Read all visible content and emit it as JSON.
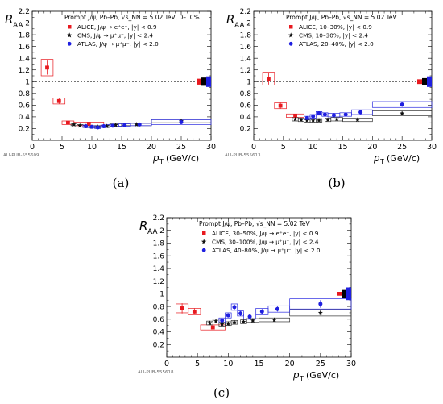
{
  "colors": {
    "alice": "#e8191f",
    "cms": "#111111",
    "atlas": "#1f1fe0",
    "alice_box": "#e8191f",
    "cms_box": "#333333",
    "atlas_box": "#2a2ae0",
    "unc_alice": "#e8191f",
    "unc_cms": "#000000",
    "unc_atlas": "#1f1fe0"
  },
  "chart_data": [
    {
      "id": "a",
      "caption": "(a)",
      "type": "scatter",
      "ylabel_main": "R",
      "ylabel_sub": "AA",
      "xlabel_main": "p",
      "xlabel_sub": "T",
      "xlabel_unit": "(GeV/c)",
      "header": "Prompt J/ψ, Pb–Pb, √s_NN = 5.02 TeV, 0–10%",
      "preliminary": "ALI-PUB-555609",
      "xlim": [
        0,
        30
      ],
      "ylim": [
        0,
        2.2
      ],
      "xticks": [
        0,
        5,
        10,
        15,
        20,
        25,
        30
      ],
      "yticks": [
        0.2,
        0.4,
        0.6,
        0.8,
        1,
        1.2,
        1.4,
        1.6,
        1.8,
        2,
        2.2
      ],
      "reference_line": 1,
      "legend": [
        {
          "label": "ALICE, J/ψ → e⁺e⁻, |y| < 0.9",
          "marker": "square",
          "color": "alice"
        },
        {
          "label": "CMS, J/ψ → μ⁺μ⁻, |y| < 2.4",
          "marker": "star",
          "color": "cms"
        },
        {
          "label": "ATLAS, J/ψ → μ⁺μ⁻, |y| < 2.0",
          "marker": "circle",
          "color": "atlas"
        }
      ],
      "series": [
        {
          "name": "ALICE",
          "color": "alice",
          "marker": "square",
          "points": [
            {
              "x": 2.5,
              "y": 1.24,
              "xlo": 1.5,
              "xhi": 3.5,
              "stat": 0.12,
              "sys": 0.14
            },
            {
              "x": 4.5,
              "y": 0.67,
              "xlo": 3.5,
              "xhi": 5.5,
              "stat": 0.05,
              "sys": 0.05
            },
            {
              "x": 6.0,
              "y": 0.3,
              "xlo": 5.0,
              "xhi": 7.0,
              "stat": 0.02,
              "sys": 0.03
            },
            {
              "x": 9.5,
              "y": 0.28,
              "xlo": 7.0,
              "xhi": 12.0,
              "stat": 0.02,
              "sys": 0.03
            }
          ]
        },
        {
          "name": "CMS",
          "color": "cms",
          "marker": "star",
          "points": [
            {
              "x": 7.0,
              "y": 0.27,
              "xlo": 6.5,
              "xhi": 7.5,
              "stat": 0.02,
              "sys": 0.02
            },
            {
              "x": 8.0,
              "y": 0.25,
              "xlo": 7.5,
              "xhi": 8.5,
              "stat": 0.02,
              "sys": 0.02
            },
            {
              "x": 9.0,
              "y": 0.24,
              "xlo": 8.5,
              "xhi": 9.5,
              "stat": 0.02,
              "sys": 0.02
            },
            {
              "x": 10.0,
              "y": 0.23,
              "xlo": 9.5,
              "xhi": 10.5,
              "stat": 0.02,
              "sys": 0.02
            },
            {
              "x": 11.0,
              "y": 0.23,
              "xlo": 10.5,
              "xhi": 11.5,
              "stat": 0.02,
              "sys": 0.02
            },
            {
              "x": 12.5,
              "y": 0.24,
              "xlo": 12.0,
              "xhi": 13.0,
              "stat": 0.02,
              "sys": 0.02
            },
            {
              "x": 14.0,
              "y": 0.26,
              "xlo": 13.0,
              "xhi": 15.0,
              "stat": 0.02,
              "sys": 0.02
            },
            {
              "x": 17.5,
              "y": 0.27,
              "xlo": 15.0,
              "xhi": 20.0,
              "stat": 0.02,
              "sys": 0.02
            },
            {
              "x": 25.0,
              "y": 0.33,
              "xlo": 20.0,
              "xhi": 30.0,
              "stat": 0.03,
              "sys": 0.03
            }
          ]
        },
        {
          "name": "ATLAS",
          "color": "atlas",
          "marker": "circle",
          "points": [
            {
              "x": 9.0,
              "y": 0.24,
              "xlo": 8.5,
              "xhi": 9.5,
              "stat": 0.02,
              "sys": 0.02
            },
            {
              "x": 10.0,
              "y": 0.23,
              "xlo": 9.5,
              "xhi": 10.5,
              "stat": 0.02,
              "sys": 0.02
            },
            {
              "x": 11.0,
              "y": 0.22,
              "xlo": 10.5,
              "xhi": 11.5,
              "stat": 0.02,
              "sys": 0.02
            },
            {
              "x": 12.0,
              "y": 0.24,
              "xlo": 11.5,
              "xhi": 12.5,
              "stat": 0.02,
              "sys": 0.02
            },
            {
              "x": 13.5,
              "y": 0.25,
              "xlo": 12.5,
              "xhi": 14.5,
              "stat": 0.02,
              "sys": 0.02
            },
            {
              "x": 15.5,
              "y": 0.26,
              "xlo": 14.5,
              "xhi": 16.5,
              "stat": 0.02,
              "sys": 0.02
            },
            {
              "x": 18.0,
              "y": 0.27,
              "xlo": 16.5,
              "xhi": 20.0,
              "stat": 0.02,
              "sys": 0.02
            },
            {
              "x": 25.0,
              "y": 0.31,
              "xlo": 20.0,
              "xhi": 30.0,
              "stat": 0.03,
              "sys": 0.04
            }
          ]
        }
      ],
      "global_unc": [
        {
          "color": "unc_alice",
          "value": 0.05
        },
        {
          "color": "unc_cms",
          "value": 0.07
        },
        {
          "color": "unc_atlas",
          "value": 0.09
        }
      ]
    },
    {
      "id": "b",
      "caption": "(b)",
      "type": "scatter",
      "ylabel_main": "R",
      "ylabel_sub": "AA",
      "xlabel_main": "p",
      "xlabel_sub": "T",
      "xlabel_unit": "(GeV/c)",
      "header": "Prompt J/ψ, Pb–Pb, √s_NN = 5.02 TeV",
      "preliminary": "ALI-PUB-555613",
      "xlim": [
        0,
        30
      ],
      "ylim": [
        0,
        2.2
      ],
      "xticks": [
        0,
        5,
        10,
        15,
        20,
        25,
        30
      ],
      "yticks": [
        0.2,
        0.4,
        0.6,
        0.8,
        1,
        1.2,
        1.4,
        1.6,
        1.8,
        2,
        2.2
      ],
      "reference_line": 1,
      "legend": [
        {
          "label": "ALICE, 10–30%, |y| < 0.9",
          "marker": "square",
          "color": "alice"
        },
        {
          "label": "CMS, 10–30%, |y| < 2.4",
          "marker": "star",
          "color": "cms"
        },
        {
          "label": "ATLAS, 20–40%, |y| < 2.0",
          "marker": "circle",
          "color": "atlas"
        }
      ],
      "series": [
        {
          "name": "ALICE",
          "color": "alice",
          "marker": "square",
          "points": [
            {
              "x": 2.5,
              "y": 1.05,
              "xlo": 1.5,
              "xhi": 3.5,
              "stat": 0.1,
              "sys": 0.11
            },
            {
              "x": 4.5,
              "y": 0.59,
              "xlo": 3.5,
              "xhi": 5.5,
              "stat": 0.05,
              "sys": 0.05
            },
            {
              "x": 7.0,
              "y": 0.42,
              "xlo": 5.5,
              "xhi": 8.5,
              "stat": 0.03,
              "sys": 0.03
            }
          ]
        },
        {
          "name": "CMS",
          "color": "cms",
          "marker": "star",
          "points": [
            {
              "x": 7.0,
              "y": 0.36,
              "xlo": 6.5,
              "xhi": 7.5,
              "stat": 0.02,
              "sys": 0.03
            },
            {
              "x": 8.0,
              "y": 0.35,
              "xlo": 7.5,
              "xhi": 8.5,
              "stat": 0.02,
              "sys": 0.03
            },
            {
              "x": 9.0,
              "y": 0.34,
              "xlo": 8.5,
              "xhi": 9.5,
              "stat": 0.02,
              "sys": 0.03
            },
            {
              "x": 10.0,
              "y": 0.34,
              "xlo": 9.5,
              "xhi": 10.5,
              "stat": 0.02,
              "sys": 0.03
            },
            {
              "x": 11.0,
              "y": 0.34,
              "xlo": 10.5,
              "xhi": 11.5,
              "stat": 0.02,
              "sys": 0.03
            },
            {
              "x": 12.5,
              "y": 0.35,
              "xlo": 12.0,
              "xhi": 13.0,
              "stat": 0.02,
              "sys": 0.03
            },
            {
              "x": 14.0,
              "y": 0.36,
              "xlo": 13.0,
              "xhi": 15.0,
              "stat": 0.02,
              "sys": 0.03
            },
            {
              "x": 17.5,
              "y": 0.35,
              "xlo": 15.0,
              "xhi": 20.0,
              "stat": 0.02,
              "sys": 0.03
            },
            {
              "x": 25.0,
              "y": 0.46,
              "xlo": 20.0,
              "xhi": 30.0,
              "stat": 0.03,
              "sys": 0.04
            }
          ]
        },
        {
          "name": "ATLAS",
          "color": "atlas",
          "marker": "circle",
          "points": [
            {
              "x": 9.0,
              "y": 0.38,
              "xlo": 8.5,
              "xhi": 9.5,
              "stat": 0.02,
              "sys": 0.03
            },
            {
              "x": 10.0,
              "y": 0.41,
              "xlo": 9.5,
              "xhi": 10.5,
              "stat": 0.02,
              "sys": 0.03
            },
            {
              "x": 11.0,
              "y": 0.46,
              "xlo": 10.5,
              "xhi": 11.5,
              "stat": 0.02,
              "sys": 0.03
            },
            {
              "x": 12.0,
              "y": 0.44,
              "xlo": 11.5,
              "xhi": 12.5,
              "stat": 0.02,
              "sys": 0.03
            },
            {
              "x": 13.5,
              "y": 0.43,
              "xlo": 12.5,
              "xhi": 14.5,
              "stat": 0.02,
              "sys": 0.03
            },
            {
              "x": 15.5,
              "y": 0.44,
              "xlo": 14.5,
              "xhi": 16.5,
              "stat": 0.02,
              "sys": 0.03
            },
            {
              "x": 18.0,
              "y": 0.48,
              "xlo": 16.5,
              "xhi": 20.0,
              "stat": 0.03,
              "sys": 0.04
            },
            {
              "x": 25.0,
              "y": 0.61,
              "xlo": 20.0,
              "xhi": 30.0,
              "stat": 0.04,
              "sys": 0.05
            }
          ]
        }
      ],
      "global_unc": [
        {
          "color": "unc_alice",
          "value": 0.04
        },
        {
          "color": "unc_cms",
          "value": 0.06
        },
        {
          "color": "unc_atlas",
          "value": 0.09
        }
      ]
    },
    {
      "id": "c",
      "caption": "(c)",
      "type": "scatter",
      "ylabel_main": "R",
      "ylabel_sub": "AA",
      "xlabel_main": "p",
      "xlabel_sub": "T",
      "xlabel_unit": "(GeV/c)",
      "header": "Prompt J/ψ, Pb–Pb, √s_NN = 5.02 TeV",
      "preliminary": "ALI-PUB-555618",
      "xlim": [
        0,
        30
      ],
      "ylim": [
        0,
        2.2
      ],
      "xticks": [
        0,
        5,
        10,
        15,
        20,
        25,
        30
      ],
      "yticks": [
        0.2,
        0.4,
        0.6,
        0.8,
        1,
        1.2,
        1.4,
        1.6,
        1.8,
        2,
        2.2
      ],
      "reference_line": 1,
      "legend": [
        {
          "label": "ALICE, 30–50%, J/ψ → e⁺e⁻, |y| < 0.9",
          "marker": "square",
          "color": "alice"
        },
        {
          "label": "CMS, 30–100%, J/ψ → μ⁺μ⁻, |y| < 2.4",
          "marker": "star",
          "color": "cms"
        },
        {
          "label": "ATLAS, 40–80%, J/ψ → μ⁺μ⁻, |y| < 2.0",
          "marker": "circle",
          "color": "atlas"
        }
      ],
      "series": [
        {
          "name": "ALICE",
          "color": "alice",
          "marker": "square",
          "points": [
            {
              "x": 2.5,
              "y": 0.77,
              "xlo": 1.5,
              "xhi": 3.5,
              "stat": 0.08,
              "sys": 0.07
            },
            {
              "x": 4.5,
              "y": 0.72,
              "xlo": 3.5,
              "xhi": 5.5,
              "stat": 0.05,
              "sys": 0.05
            },
            {
              "x": 7.5,
              "y": 0.47,
              "xlo": 5.5,
              "xhi": 9.5,
              "stat": 0.03,
              "sys": 0.04
            }
          ]
        },
        {
          "name": "CMS",
          "color": "cms",
          "marker": "star",
          "points": [
            {
              "x": 7.0,
              "y": 0.54,
              "xlo": 6.5,
              "xhi": 7.5,
              "stat": 0.03,
              "sys": 0.03
            },
            {
              "x": 8.0,
              "y": 0.57,
              "xlo": 7.5,
              "xhi": 8.5,
              "stat": 0.03,
              "sys": 0.03
            },
            {
              "x": 9.0,
              "y": 0.52,
              "xlo": 8.5,
              "xhi": 9.5,
              "stat": 0.03,
              "sys": 0.03
            },
            {
              "x": 10.0,
              "y": 0.53,
              "xlo": 9.5,
              "xhi": 10.5,
              "stat": 0.03,
              "sys": 0.03
            },
            {
              "x": 11.0,
              "y": 0.55,
              "xlo": 10.5,
              "xhi": 11.5,
              "stat": 0.03,
              "sys": 0.03
            },
            {
              "x": 12.5,
              "y": 0.56,
              "xlo": 12.0,
              "xhi": 13.0,
              "stat": 0.03,
              "sys": 0.03
            },
            {
              "x": 14.0,
              "y": 0.58,
              "xlo": 13.0,
              "xhi": 15.0,
              "stat": 0.03,
              "sys": 0.03
            },
            {
              "x": 17.5,
              "y": 0.59,
              "xlo": 15.0,
              "xhi": 20.0,
              "stat": 0.03,
              "sys": 0.03
            },
            {
              "x": 25.0,
              "y": 0.7,
              "xlo": 20.0,
              "xhi": 30.0,
              "stat": 0.04,
              "sys": 0.05
            }
          ]
        },
        {
          "name": "ATLAS",
          "color": "atlas",
          "marker": "circle",
          "points": [
            {
              "x": 9.0,
              "y": 0.58,
              "xlo": 8.5,
              "xhi": 9.5,
              "stat": 0.03,
              "sys": 0.04
            },
            {
              "x": 10.0,
              "y": 0.66,
              "xlo": 9.5,
              "xhi": 10.5,
              "stat": 0.03,
              "sys": 0.04
            },
            {
              "x": 11.0,
              "y": 0.79,
              "xlo": 10.5,
              "xhi": 11.5,
              "stat": 0.04,
              "sys": 0.05
            },
            {
              "x": 12.0,
              "y": 0.69,
              "xlo": 11.5,
              "xhi": 12.5,
              "stat": 0.04,
              "sys": 0.04
            },
            {
              "x": 13.5,
              "y": 0.64,
              "xlo": 12.5,
              "xhi": 14.5,
              "stat": 0.04,
              "sys": 0.04
            },
            {
              "x": 15.5,
              "y": 0.72,
              "xlo": 14.5,
              "xhi": 16.5,
              "stat": 0.04,
              "sys": 0.05
            },
            {
              "x": 18.0,
              "y": 0.76,
              "xlo": 16.5,
              "xhi": 20.0,
              "stat": 0.04,
              "sys": 0.05
            },
            {
              "x": 25.0,
              "y": 0.84,
              "xlo": 20.0,
              "xhi": 30.0,
              "stat": 0.06,
              "sys": 0.08
            }
          ]
        }
      ],
      "global_unc": [
        {
          "color": "unc_alice",
          "value": 0.03
        },
        {
          "color": "unc_cms",
          "value": 0.06
        },
        {
          "color": "unc_atlas",
          "value": 0.1
        }
      ]
    }
  ]
}
